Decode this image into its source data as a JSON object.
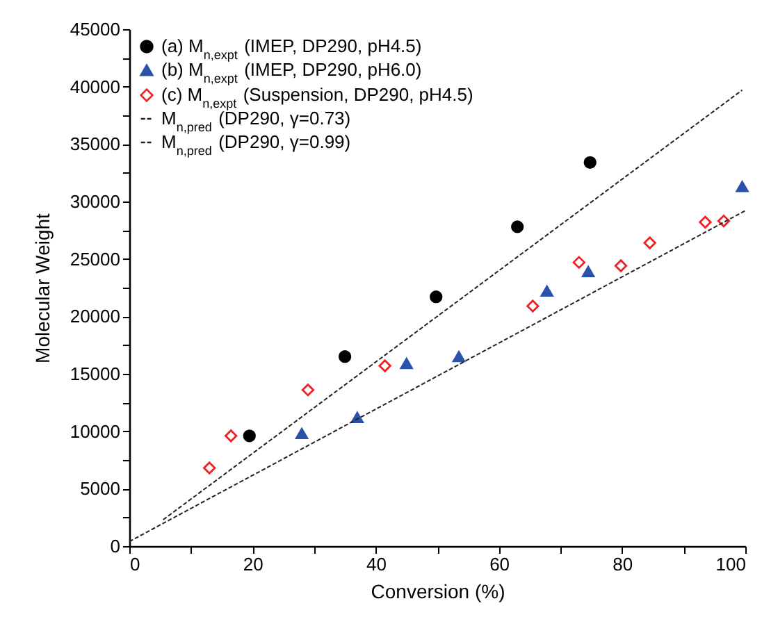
{
  "chart_data": {
    "type": "scatter",
    "xlabel": "Conversion (%)",
    "ylabel": "Molecular Weight",
    "xlim": [
      0,
      100
    ],
    "ylim": [
      0,
      45000
    ],
    "xticks": [
      0,
      {
        "value": 10,
        "label": null
      },
      20,
      {
        "value": 30,
        "label": null
      },
      40,
      {
        "value": 50,
        "label": null
      },
      60,
      {
        "value": 70,
        "label": null
      },
      80,
      {
        "value": 90,
        "label": null
      },
      100
    ],
    "yticks": [
      0,
      {
        "value": 2500,
        "label": null
      },
      5000,
      {
        "value": 7500,
        "label": null
      },
      10000,
      {
        "value": 12500,
        "label": null
      },
      15000,
      {
        "value": 17500,
        "label": null
      },
      20000,
      {
        "value": 22500,
        "label": null
      },
      25000,
      {
        "value": 27500,
        "label": null
      },
      30000,
      {
        "value": 32500,
        "label": null
      },
      35000,
      {
        "value": 37500,
        "label": null
      },
      40000,
      {
        "value": 42500,
        "label": null
      },
      45000
    ],
    "grid": false,
    "legend": "top left",
    "series": [
      {
        "name": "(a) M$_{n,expt}$ (IMEP, DP290, pH4.5)",
        "type": "scatter",
        "marker": "circle",
        "color": "#000000",
        "x": [
          19.5,
          35,
          49.8,
          63,
          74.8
        ],
        "values": [
          9600,
          16500,
          21700,
          27800,
          33400
        ]
      },
      {
        "name": "(b) M$_{n,expt}$ (IMEP, DP290, pH6.0)",
        "type": "scatter",
        "marker": "triangle",
        "color": "#2a52a8",
        "x": [
          28,
          37,
          45,
          53.5,
          67.8,
          74.5,
          99.5
        ],
        "values": [
          9800,
          11200,
          15900,
          16500,
          22200,
          23900,
          31300
        ]
      },
      {
        "name": "(c) M$_{n,expt}$ (Suspension, DP290, pH4.5)",
        "type": "scatter",
        "marker": "diamond",
        "color": "#ee2222",
        "x": [
          13,
          16.5,
          29,
          41.5,
          65.5,
          73,
          79.8,
          84.5,
          93.5,
          96.5
        ],
        "values": [
          6800,
          9600,
          13600,
          15700,
          20900,
          24700,
          24400,
          26400,
          28200,
          28300
        ]
      },
      {
        "name": "M$_{n,pred}$ (DP290, γ=0.73)",
        "type": "line",
        "line_style": "dashed",
        "color": "#222222",
        "x": [
          5.5,
          99.5
        ],
        "values": [
          2300,
          39700
        ]
      },
      {
        "name": "M$_{n,pred}$ (DP290, γ=0.99)",
        "type": "line",
        "line_style": "dashed",
        "color": "#222222",
        "x": [
          0,
          100
        ],
        "values": [
          400,
          29200
        ]
      }
    ]
  }
}
